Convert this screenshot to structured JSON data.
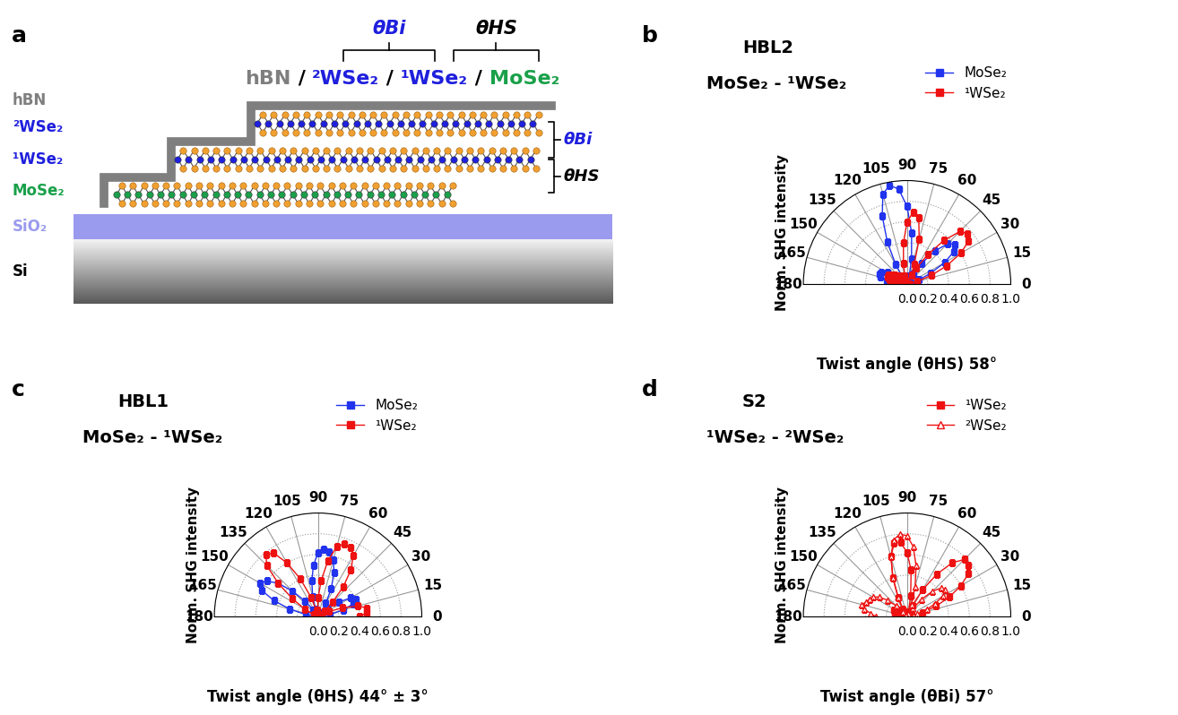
{
  "diagram": {
    "panel_label": "a",
    "heading": [
      {
        "text": "hBN",
        "color": "#7f7f7f"
      },
      {
        "text": " / ",
        "color": "#000000"
      },
      {
        "text": "²WSe₂",
        "color": "#1f1fdd"
      },
      {
        "text": " / ",
        "color": "#000000"
      },
      {
        "text": "¹WSe₂",
        "color": "#1f1fdd"
      },
      {
        "text": " / ",
        "color": "#000000"
      },
      {
        "text": "MoSe₂",
        "color": "#1aa04a"
      }
    ],
    "angle_labels": [
      {
        "text": "θBi",
        "color": "#1f1fdd"
      },
      {
        "text": "θHS",
        "color": "#000000"
      }
    ],
    "layer_labels": [
      {
        "text": "hBN",
        "color": "#7f7f7f"
      },
      {
        "text": "²WSe₂",
        "color": "#1f1fdd"
      },
      {
        "text": "¹WSe₂",
        "color": "#1f1fdd"
      },
      {
        "text": "MoSe₂",
        "color": "#1aa04a"
      },
      {
        "text": "SiO₂",
        "color": "#9a9aee"
      },
      {
        "text": "Si",
        "color": "#000000"
      }
    ],
    "side_labels": [
      {
        "text": "θBi",
        "color": "#1f1fdd"
      },
      {
        "text": "θHS",
        "color": "#000000"
      }
    ]
  },
  "chart_data": [
    {
      "type": "polar",
      "panel_label": "b",
      "title": "HBL2",
      "subtitle": "MoSe₂ - ¹WSe₂",
      "x_label": "Twist angle (θHS) 58°",
      "y_label": "Norm. SHG intensity",
      "xlim": [
        0,
        180
      ],
      "xticks": [
        0,
        15,
        30,
        45,
        60,
        75,
        90,
        105,
        120,
        135,
        150,
        165,
        180
      ],
      "ylim": [
        0.0,
        1.0
      ],
      "yticks": [
        0.0,
        0.2,
        0.4,
        0.6,
        0.8,
        1.0
      ],
      "grid": true,
      "legend": "upper right",
      "x": [
        0,
        5,
        10,
        15,
        20,
        25,
        30,
        35,
        40,
        45,
        50,
        55,
        60,
        65,
        70,
        75,
        80,
        85,
        90,
        95,
        100,
        105,
        110,
        115,
        120,
        125,
        130,
        135,
        140,
        145,
        150,
        155,
        160,
        165,
        170,
        175,
        180
      ],
      "series": [
        {
          "name": "MoSe₂",
          "color": "#2233ee",
          "marker": "square",
          "line_style": "solid",
          "values": [
            0.05,
            0.03,
            0.01,
            0.04,
            0.12,
            0.25,
            0.42,
            0.55,
            0.6,
            0.55,
            0.42,
            0.25,
            0.12,
            0.04,
            0.02,
            0.08,
            0.25,
            0.5,
            0.75,
            0.92,
            0.97,
            0.9,
            0.7,
            0.45,
            0.22,
            0.07,
            0.01,
            0.03,
            0.08,
            0.15,
            0.22,
            0.27,
            0.28,
            0.27,
            0.2,
            0.1,
            0.03
          ]
        },
        {
          "name": "¹WSe₂",
          "color": "#ee1111",
          "marker": "square",
          "line_style": "solid",
          "values": [
            0.02,
            0.01,
            0.03,
            0.1,
            0.25,
            0.42,
            0.6,
            0.72,
            0.76,
            0.72,
            0.55,
            0.35,
            0.18,
            0.1,
            0.2,
            0.45,
            0.65,
            0.7,
            0.6,
            0.4,
            0.2,
            0.08,
            0.03,
            0.02,
            0.05,
            0.08,
            0.1,
            0.1,
            0.12,
            0.15,
            0.17,
            0.2,
            0.2,
            0.18,
            0.12,
            0.06,
            0.02
          ]
        }
      ]
    },
    {
      "type": "polar",
      "panel_label": "c",
      "title": "HBL1",
      "subtitle": "MoSe₂ - ¹WSe₂",
      "x_label": "Twist angle (θHS) 44° ± 3°",
      "y_label": "Norm. SHG intensity",
      "xlim": [
        0,
        180
      ],
      "xticks": [
        0,
        15,
        30,
        45,
        60,
        75,
        90,
        105,
        120,
        135,
        150,
        165,
        180
      ],
      "ylim": [
        0.0,
        1.0
      ],
      "yticks": [
        0.0,
        0.2,
        0.4,
        0.6,
        0.8,
        1.0
      ],
      "grid": true,
      "legend": "upper right",
      "x": [
        0,
        5,
        10,
        15,
        20,
        25,
        30,
        35,
        40,
        45,
        50,
        55,
        60,
        65,
        70,
        75,
        80,
        85,
        90,
        95,
        100,
        105,
        110,
        115,
        120,
        125,
        130,
        135,
        140,
        145,
        150,
        155,
        160,
        165,
        170,
        175,
        180
      ],
      "series": [
        {
          "name": "MoSe₂",
          "color": "#2233ee",
          "marker": "square",
          "line_style": "solid",
          "values": [
            0.01,
            0.04,
            0.12,
            0.25,
            0.36,
            0.4,
            0.36,
            0.25,
            0.12,
            0.04,
            0.01,
            0.05,
            0.15,
            0.3,
            0.45,
            0.57,
            0.63,
            0.65,
            0.62,
            0.5,
            0.35,
            0.2,
            0.08,
            0.02,
            0.02,
            0.08,
            0.2,
            0.35,
            0.5,
            0.6,
            0.65,
            0.6,
            0.45,
            0.28,
            0.12,
            0.04,
            0.01
          ]
        },
        {
          "name": "¹WSe₂",
          "color": "#ee1111",
          "marker": "square",
          "line_style": "solid",
          "values": [
            0.4,
            0.47,
            0.48,
            0.4,
            0.25,
            0.12,
            0.04,
            0.02,
            0.08,
            0.2,
            0.38,
            0.55,
            0.68,
            0.74,
            0.75,
            0.7,
            0.55,
            0.35,
            0.18,
            0.06,
            0.02,
            0.06,
            0.2,
            0.4,
            0.6,
            0.75,
            0.78,
            0.7,
            0.5,
            0.3,
            0.15,
            0.05,
            0.02,
            0.01,
            0.02,
            0.03,
            0.03
          ]
        }
      ]
    },
    {
      "type": "polar",
      "panel_label": "d",
      "title": "S2",
      "subtitle": "¹WSe₂ - ²WSe₂",
      "x_label": "Twist angle (θBi) 57°",
      "y_label": "Norm. SHG intensity",
      "xlim": [
        0,
        180
      ],
      "xticks": [
        0,
        15,
        30,
        45,
        60,
        75,
        90,
        105,
        120,
        135,
        150,
        165,
        180
      ],
      "ylim": [
        0.0,
        1.0
      ],
      "yticks": [
        0.0,
        0.2,
        0.4,
        0.6,
        0.8,
        1.0
      ],
      "grid": true,
      "legend": "upper right",
      "x": [
        0,
        5,
        10,
        15,
        20,
        25,
        30,
        35,
        40,
        45,
        50,
        55,
        60,
        65,
        70,
        75,
        80,
        85,
        90,
        95,
        100,
        105,
        110,
        115,
        120,
        125,
        130,
        135,
        140,
        145,
        150,
        155,
        160,
        165,
        170,
        175,
        180
      ],
      "series": [
        {
          "name": "¹WSe₂",
          "color": "#ee1111",
          "marker": "square",
          "line_style": "solid",
          "values": [
            0.05,
            0.03,
            0.05,
            0.15,
            0.3,
            0.45,
            0.6,
            0.72,
            0.77,
            0.78,
            0.68,
            0.5,
            0.3,
            0.12,
            0.04,
            0.05,
            0.2,
            0.45,
            0.62,
            0.72,
            0.72,
            0.6,
            0.4,
            0.2,
            0.08,
            0.03,
            0.05,
            0.08,
            0.1,
            0.12,
            0.13,
            0.14,
            0.13,
            0.12,
            0.1,
            0.06,
            0.02
          ]
        },
        {
          "name": "²WSe₂",
          "color": "#ee1111",
          "marker": "open_triangle",
          "line_style": "solid",
          "values": [
            0.02,
            0.04,
            0.06,
            0.1,
            0.2,
            0.3,
            0.4,
            0.45,
            0.43,
            0.35,
            0.22,
            0.1,
            0.03,
            0.03,
            0.12,
            0.3,
            0.5,
            0.68,
            0.78,
            0.8,
            0.75,
            0.6,
            0.4,
            0.2,
            0.06,
            0.02,
            0.06,
            0.15,
            0.25,
            0.33,
            0.38,
            0.4,
            0.42,
            0.45,
            0.42,
            0.35,
            0.3
          ]
        }
      ]
    }
  ]
}
